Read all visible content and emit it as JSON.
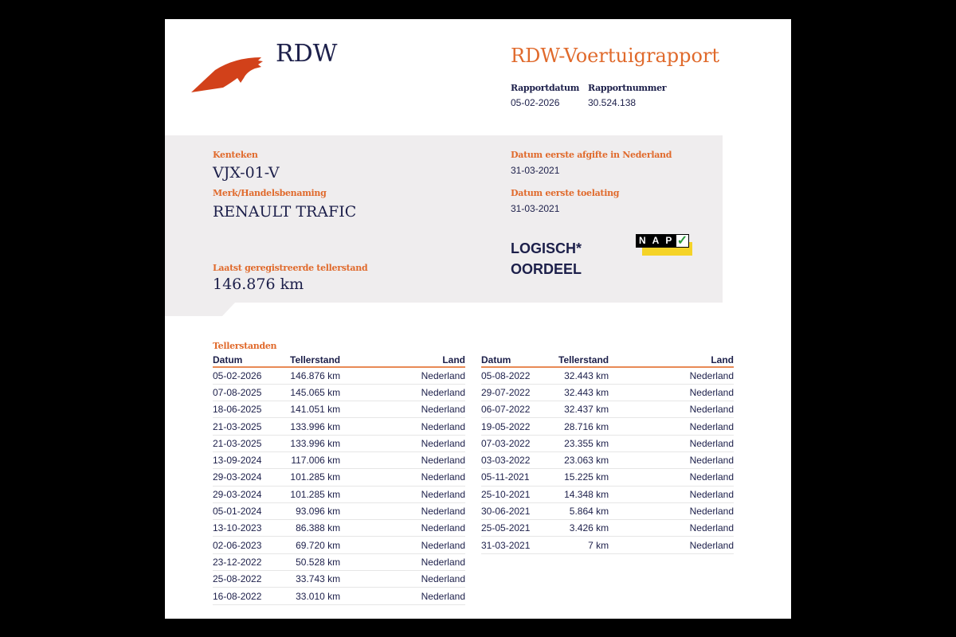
{
  "logo": {
    "text": "RDW",
    "icon": "rdw-wing-logo"
  },
  "report": {
    "title": "RDW-Voertuigrapport",
    "date_label": "Rapportdatum",
    "date": "05-02-2026",
    "number_label": "Rapportnummer",
    "number": "30.524.138"
  },
  "vehicle": {
    "plate_label": "Kenteken",
    "plate": "VJX-01-V",
    "brand_label": "Merk/Handelsbenaming",
    "brand": "RENAULT TRAFIC",
    "odometer_label": "Laatst geregistreerde tellerstand",
    "odometer": "146.876 km",
    "first_issue_label": "Datum eerste afgifte in Nederland",
    "first_issue": "31-03-2021",
    "first_admission_label": "Datum eerste toelating",
    "first_admission": "31-03-2021",
    "verdict_line1": "LOGISCH*",
    "verdict_line2": "OORDEEL",
    "nap_badge": "NAP",
    "colors": {
      "accent": "#e06a2c",
      "navy": "#1c1f4a",
      "nap_yellow": "#f5d327",
      "nap_check": "#2a9a3a"
    }
  },
  "readings": {
    "title": "Tellerstanden",
    "columns": [
      "Datum",
      "Tellerstand",
      "Land"
    ],
    "left": [
      [
        "05-02-2026",
        "146.876 km",
        "Nederland"
      ],
      [
        "07-08-2025",
        "145.065 km",
        "Nederland"
      ],
      [
        "18-06-2025",
        "141.051 km",
        "Nederland"
      ],
      [
        "21-03-2025",
        "133.996 km",
        "Nederland"
      ],
      [
        "21-03-2025",
        "133.996 km",
        "Nederland"
      ],
      [
        "13-09-2024",
        "117.006 km",
        "Nederland"
      ],
      [
        "29-03-2024",
        "101.285 km",
        "Nederland"
      ],
      [
        "29-03-2024",
        "101.285 km",
        "Nederland"
      ],
      [
        "05-01-2024",
        "93.096 km",
        "Nederland"
      ],
      [
        "13-10-2023",
        "86.388 km",
        "Nederland"
      ],
      [
        "02-06-2023",
        "69.720 km",
        "Nederland"
      ],
      [
        "23-12-2022",
        "50.528 km",
        "Nederland"
      ],
      [
        "25-08-2022",
        "33.743 km",
        "Nederland"
      ],
      [
        "16-08-2022",
        "33.010 km",
        "Nederland"
      ]
    ],
    "right": [
      [
        "05-08-2022",
        "32.443 km",
        "Nederland"
      ],
      [
        "29-07-2022",
        "32.443 km",
        "Nederland"
      ],
      [
        "06-07-2022",
        "32.437 km",
        "Nederland"
      ],
      [
        "19-05-2022",
        "28.716 km",
        "Nederland"
      ],
      [
        "07-03-2022",
        "23.355 km",
        "Nederland"
      ],
      [
        "03-03-2022",
        "23.063 km",
        "Nederland"
      ],
      [
        "05-11-2021",
        "15.225 km",
        "Nederland"
      ],
      [
        "25-10-2021",
        "14.348 km",
        "Nederland"
      ],
      [
        "30-06-2021",
        "5.864 km",
        "Nederland"
      ],
      [
        "25-05-2021",
        "3.426 km",
        "Nederland"
      ],
      [
        "31-03-2021",
        "7 km",
        "Nederland"
      ]
    ]
  }
}
